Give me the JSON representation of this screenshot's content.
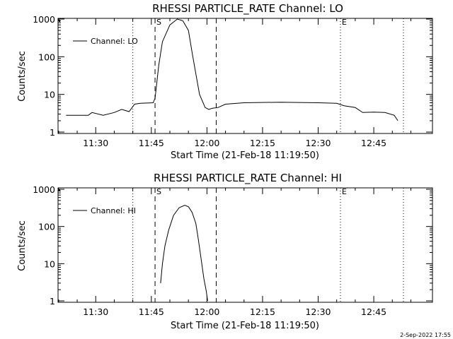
{
  "chart_data": [
    {
      "type": "line",
      "title": "RHESSI PARTICLE_RATE Channel: LO",
      "xlabel": "Start Time (21-Feb-18 11:19:50)",
      "ylabel": "Counts/sec",
      "yscale": "log",
      "ylim": [
        1,
        1000
      ],
      "xlim": [
        "11:19:50",
        "13:00:50"
      ],
      "x_ticks": [
        "11:30",
        "11:45",
        "12:00",
        "12:15",
        "12:30",
        "12:45"
      ],
      "y_ticks": [
        "1",
        "10",
        "100",
        "1000"
      ],
      "legend": {
        "text": "Channel: LO",
        "placement": "top-left"
      },
      "markers": [
        {
          "label": "S",
          "time": "11:46:00",
          "style": "dashed"
        },
        {
          "label": "",
          "time": "12:02:30",
          "style": "dashed"
        },
        {
          "label": "E",
          "time": "12:36:00",
          "style": "dotted"
        }
      ],
      "dotted_lines": [
        "11:40:00",
        "12:36:00",
        "12:53:00"
      ],
      "series": [
        {
          "name": "Channel: LO",
          "x": [
            "11:22:00",
            "11:28:00",
            "11:29:00",
            "11:32:00",
            "11:35:00",
            "11:37:00",
            "11:39:00",
            "11:40:30",
            "11:42:00",
            "11:45:30",
            "11:46:00",
            "11:47:00",
            "11:48:00",
            "11:50:00",
            "11:52:00",
            "11:53:30",
            "11:55:00",
            "11:56:00",
            "11:57:00",
            "11:58:00",
            "11:59:30",
            "12:00:30",
            "12:01:30",
            "12:03:00",
            "12:05:00",
            "12:10:00",
            "12:20:00",
            "12:30:00",
            "12:35:00",
            "12:37:00",
            "12:40:00",
            "12:42:00",
            "12:45:00",
            "12:48:00",
            "12:50:30",
            "12:51:30"
          ],
          "y": [
            2.8,
            2.8,
            3.3,
            2.8,
            3.3,
            4.0,
            3.5,
            5.5,
            5.8,
            6.0,
            8,
            60,
            250,
            700,
            1000,
            900,
            500,
            130,
            35,
            10,
            4.5,
            4.0,
            4.3,
            4.5,
            5.5,
            6.0,
            6.2,
            6.0,
            5.8,
            5.0,
            4.5,
            3.3,
            3.4,
            3.3,
            2.8,
            2.0
          ]
        }
      ]
    },
    {
      "type": "line",
      "title": "RHESSI PARTICLE_RATE Channel: HI",
      "xlabel": "Start Time (21-Feb-18 11:19:50)",
      "ylabel": "Counts/sec",
      "yscale": "log",
      "ylim": [
        1,
        1000
      ],
      "xlim": [
        "11:19:50",
        "13:00:50"
      ],
      "x_ticks": [
        "11:30",
        "11:45",
        "12:00",
        "12:15",
        "12:30",
        "12:45"
      ],
      "y_ticks": [
        "1",
        "10",
        "100",
        "1000"
      ],
      "legend": {
        "text": "Channel: HI",
        "placement": "top-left"
      },
      "markers": [
        {
          "label": "S",
          "time": "11:46:00",
          "style": "dashed"
        },
        {
          "label": "",
          "time": "12:02:30",
          "style": "dashed"
        },
        {
          "label": "E",
          "time": "12:36:00",
          "style": "dotted"
        }
      ],
      "dotted_lines": [
        "11:40:00",
        "12:36:00",
        "12:53:00"
      ],
      "series": [
        {
          "name": "Channel: HI",
          "x": [
            "11:47:30",
            "11:48:00",
            "11:48:40",
            "11:49:40",
            "11:51:00",
            "11:52:30",
            "11:54:00",
            "11:55:00",
            "11:56:00",
            "11:57:00",
            "11:57:40",
            "11:58:30",
            "11:59:10",
            "11:59:50",
            "12:00:10"
          ],
          "y": [
            3,
            10,
            30,
            80,
            200,
            320,
            370,
            340,
            240,
            120,
            45,
            12,
            4,
            1.8,
            1
          ]
        }
      ]
    }
  ],
  "footer": {
    "date_stamp": "2-Sep-2022 17:55"
  }
}
